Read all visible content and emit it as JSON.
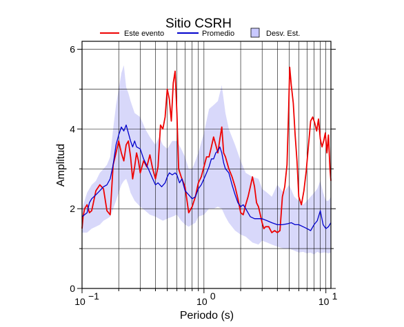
{
  "chart_data": {
    "type": "line",
    "title": "Sitio CSRH",
    "xlabel": "Periodo (s)",
    "ylabel": "Amplitud",
    "x_scale": "log",
    "xlim": [
      0.1,
      11
    ],
    "ylim": [
      0,
      6.2
    ],
    "x_ticks": [
      {
        "value": 0.1,
        "base": "10",
        "exp": "−1"
      },
      {
        "value": 1,
        "base": "10",
        "exp": "0"
      },
      {
        "value": 10,
        "base": "10",
        "exp": "1"
      }
    ],
    "y_ticks": [
      0,
      2,
      4,
      6
    ],
    "grid": true,
    "legend_position": "top",
    "legend": {
      "event": "Este evento",
      "mean": "Promedio",
      "std": "Desv. Est."
    },
    "colors": {
      "event": "#ee0000",
      "mean": "#0000cc",
      "std_fill": "#d8d8fa",
      "std_legend_fill": "#c8c8ff",
      "grid": "#000000"
    },
    "series": [
      {
        "name": "Este evento",
        "x": [
          0.1,
          0.102,
          0.105,
          0.11,
          0.115,
          0.12,
          0.125,
          0.13,
          0.14,
          0.15,
          0.16,
          0.17,
          0.18,
          0.19,
          0.2,
          0.21,
          0.22,
          0.23,
          0.24,
          0.25,
          0.26,
          0.27,
          0.28,
          0.29,
          0.3,
          0.32,
          0.34,
          0.36,
          0.38,
          0.4,
          0.42,
          0.44,
          0.46,
          0.48,
          0.5,
          0.52,
          0.54,
          0.56,
          0.58,
          0.6,
          0.62,
          0.65,
          0.7,
          0.75,
          0.8,
          0.85,
          0.9,
          0.95,
          1.0,
          1.05,
          1.1,
          1.15,
          1.2,
          1.25,
          1.3,
          1.35,
          1.4,
          1.45,
          1.5,
          1.55,
          1.6,
          1.65,
          1.7,
          1.8,
          1.9,
          2.0,
          2.1,
          2.2,
          2.3,
          2.4,
          2.5,
          2.6,
          2.7,
          2.8,
          2.9,
          3.0,
          3.1,
          3.2,
          3.4,
          3.6,
          3.8,
          4.0,
          4.2,
          4.4,
          4.6,
          4.8,
          4.95,
          5.05,
          5.2,
          5.4,
          5.6,
          5.8,
          6.0,
          6.3,
          6.6,
          6.9,
          7.2,
          7.5,
          7.8,
          8.1,
          8.4,
          8.7,
          9.0,
          9.3,
          9.6,
          9.9,
          10.2,
          10.5,
          10.8,
          11.0
        ],
        "y": [
          1.5,
          1.8,
          2.0,
          2.1,
          1.9,
          1.95,
          2.2,
          2.45,
          2.6,
          2.5,
          1.95,
          1.85,
          3.1,
          3.4,
          3.7,
          3.4,
          3.2,
          3.6,
          3.7,
          3.3,
          2.75,
          3.05,
          3.4,
          3.2,
          2.9,
          3.2,
          3.05,
          3.35,
          3.0,
          2.75,
          3.05,
          4.1,
          4.0,
          4.3,
          5.0,
          4.75,
          4.2,
          5.15,
          5.45,
          4.4,
          3.0,
          2.8,
          2.55,
          1.9,
          2.05,
          2.3,
          2.65,
          2.8,
          3.05,
          3.3,
          3.3,
          3.55,
          3.8,
          3.6,
          3.4,
          3.75,
          4.05,
          3.4,
          3.3,
          3.15,
          3.0,
          2.9,
          2.8,
          2.55,
          2.25,
          1.9,
          1.85,
          2.1,
          2.3,
          2.55,
          2.8,
          2.55,
          2.15,
          2.05,
          1.85,
          1.65,
          1.5,
          1.55,
          1.55,
          1.4,
          1.45,
          1.4,
          1.45,
          2.3,
          2.55,
          3.1,
          4.5,
          5.55,
          5.1,
          4.65,
          3.85,
          3.2,
          2.3,
          2.1,
          2.45,
          2.95,
          3.6,
          4.2,
          4.3,
          4.15,
          3.95,
          4.25,
          3.75,
          3.55,
          3.7,
          3.9,
          3.4,
          3.85,
          3.0,
          2.7
        ],
        "color": "#ee0000"
      },
      {
        "name": "Promedio",
        "x": [
          0.1,
          0.105,
          0.11,
          0.115,
          0.12,
          0.125,
          0.13,
          0.14,
          0.15,
          0.16,
          0.17,
          0.18,
          0.19,
          0.2,
          0.21,
          0.22,
          0.23,
          0.24,
          0.25,
          0.26,
          0.27,
          0.28,
          0.3,
          0.32,
          0.35,
          0.38,
          0.4,
          0.42,
          0.45,
          0.48,
          0.5,
          0.52,
          0.55,
          0.58,
          0.6,
          0.63,
          0.66,
          0.7,
          0.75,
          0.8,
          0.85,
          0.9,
          0.95,
          1.0,
          1.05,
          1.1,
          1.15,
          1.2,
          1.25,
          1.3,
          1.35,
          1.4,
          1.45,
          1.5,
          1.55,
          1.6,
          1.65,
          1.7,
          1.8,
          1.9,
          2.0,
          2.1,
          2.2,
          2.4,
          2.6,
          2.8,
          3.0,
          3.3,
          3.6,
          4.0,
          4.4,
          4.8,
          5.2,
          5.6,
          6.0,
          6.5,
          7.0,
          7.5,
          8.0,
          8.5,
          9.0,
          9.5,
          10.0,
          10.5,
          11.0
        ],
        "y": [
          1.8,
          1.85,
          1.9,
          2.15,
          2.25,
          2.3,
          2.35,
          2.45,
          2.55,
          2.6,
          2.75,
          3.1,
          3.6,
          3.85,
          4.05,
          3.95,
          4.1,
          3.9,
          3.7,
          3.55,
          3.7,
          3.55,
          3.5,
          3.25,
          3.0,
          2.75,
          2.6,
          2.65,
          2.55,
          2.65,
          2.8,
          2.9,
          2.85,
          2.9,
          2.85,
          2.65,
          2.75,
          2.45,
          2.35,
          2.25,
          2.3,
          2.5,
          2.6,
          2.75,
          2.9,
          3.05,
          3.25,
          3.25,
          3.4,
          3.45,
          3.55,
          3.4,
          3.15,
          3.0,
          2.95,
          2.9,
          2.75,
          2.6,
          2.35,
          2.15,
          2.05,
          2.1,
          2.0,
          1.8,
          1.75,
          1.75,
          1.75,
          1.7,
          1.65,
          1.6,
          1.6,
          1.62,
          1.65,
          1.6,
          1.6,
          1.55,
          1.5,
          1.45,
          1.6,
          1.7,
          1.95,
          1.6,
          1.5,
          1.55,
          1.65
        ],
        "color": "#0000cc"
      }
    ],
    "std_band": {
      "name": "Desv. Est.",
      "x": [
        0.1,
        0.11,
        0.12,
        0.13,
        0.14,
        0.15,
        0.16,
        0.17,
        0.18,
        0.19,
        0.2,
        0.21,
        0.22,
        0.23,
        0.24,
        0.25,
        0.27,
        0.3,
        0.33,
        0.36,
        0.4,
        0.43,
        0.46,
        0.5,
        0.55,
        0.6,
        0.65,
        0.7,
        0.75,
        0.8,
        0.85,
        0.9,
        1.0,
        1.1,
        1.2,
        1.3,
        1.4,
        1.5,
        1.6,
        1.8,
        2.0,
        2.2,
        2.5,
        2.8,
        3.0,
        3.3,
        3.6,
        4.0,
        4.5,
        5.0,
        5.5,
        6.0,
        6.5,
        7.0,
        7.5,
        8.0,
        8.5,
        9.0,
        9.5,
        10.0,
        10.5,
        11.0
      ],
      "upper": [
        2.0,
        2.4,
        2.6,
        2.7,
        2.9,
        3.0,
        3.1,
        3.3,
        4.0,
        4.6,
        5.0,
        5.4,
        5.6,
        5.05,
        4.9,
        4.7,
        4.4,
        4.3,
        4.0,
        3.8,
        3.6,
        3.8,
        3.6,
        3.5,
        3.7,
        3.7,
        3.5,
        3.3,
        3.0,
        3.0,
        3.2,
        3.4,
        3.9,
        4.5,
        4.6,
        4.7,
        5.1,
        4.4,
        4.0,
        3.6,
        3.2,
        2.9,
        2.8,
        2.75,
        2.5,
        2.4,
        2.3,
        2.6,
        2.4,
        2.6,
        2.3,
        2.2,
        2.1,
        2.2,
        2.3,
        2.4,
        2.5,
        2.7,
        2.4,
        2.2,
        2.2,
        2.3
      ],
      "lower": [
        1.4,
        1.4,
        1.5,
        1.55,
        1.6,
        1.7,
        1.75,
        1.8,
        2.0,
        2.2,
        2.4,
        2.6,
        2.7,
        2.75,
        2.6,
        2.4,
        2.2,
        2.05,
        1.95,
        1.85,
        1.8,
        1.75,
        1.7,
        1.75,
        1.8,
        1.85,
        1.7,
        1.6,
        1.55,
        1.6,
        1.65,
        1.8,
        1.85,
        2.0,
        2.0,
        2.05,
        2.0,
        1.8,
        1.65,
        1.45,
        1.35,
        1.3,
        1.15,
        1.1,
        1.2,
        1.15,
        1.1,
        1.05,
        1.0,
        1.0,
        0.95,
        0.9,
        0.92,
        0.88,
        0.9,
        0.85,
        0.92,
        0.88,
        0.9,
        0.9,
        0.88,
        0.9
      ]
    }
  }
}
